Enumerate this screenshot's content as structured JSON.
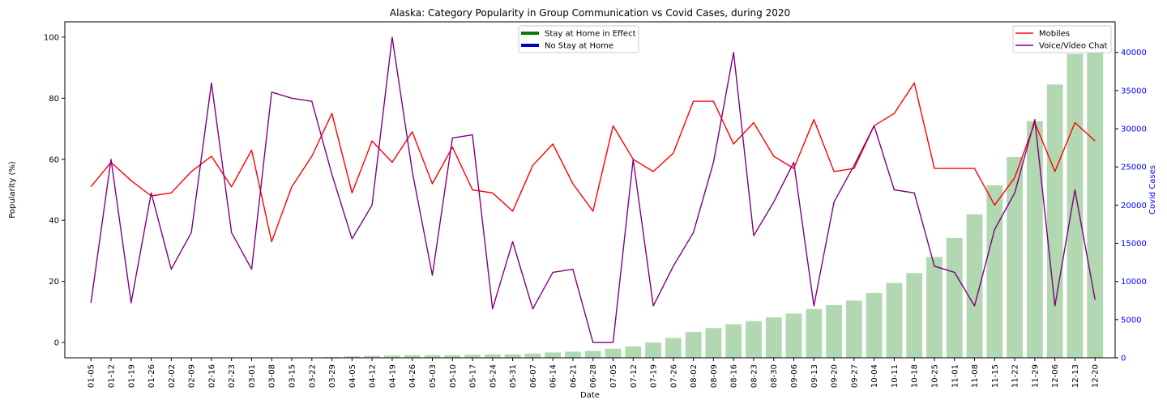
{
  "chart_data": {
    "type": "bar+line",
    "title": "Alaska: Category Popularity in Group Communication vs Covid Cases, during 2020",
    "xlabel": "Date",
    "ylabel": "Popularity (%)",
    "y2label": "Covid Cases",
    "ylim": [
      -5,
      105
    ],
    "y2lim": [
      0,
      44000
    ],
    "yticks": [
      0,
      20,
      40,
      60,
      80,
      100
    ],
    "y2ticks": [
      0,
      5000,
      10000,
      15000,
      20000,
      25000,
      30000,
      35000,
      40000
    ],
    "categories": [
      "01-05",
      "01-12",
      "01-19",
      "01-26",
      "02-02",
      "02-09",
      "02-16",
      "02-23",
      "03-01",
      "03-08",
      "03-15",
      "03-22",
      "03-29",
      "04-05",
      "04-12",
      "04-19",
      "04-26",
      "05-03",
      "05-10",
      "05-17",
      "05-24",
      "05-31",
      "06-07",
      "06-14",
      "06-21",
      "06-28",
      "07-05",
      "07-12",
      "07-19",
      "07-26",
      "08-02",
      "08-09",
      "08-16",
      "08-23",
      "08-30",
      "09-06",
      "09-13",
      "09-20",
      "09-27",
      "10-04",
      "10-11",
      "10-18",
      "10-25",
      "11-01",
      "11-08",
      "11-15",
      "11-22",
      "11-29",
      "12-06",
      "12-13",
      "12-20"
    ],
    "bars": {
      "name": "Covid Cases",
      "color": "#b1d8b1",
      "values": [
        0,
        0,
        0,
        0,
        0,
        0,
        0,
        0,
        0,
        0,
        0,
        0,
        100,
        200,
        250,
        300,
        350,
        350,
        350,
        400,
        450,
        450,
        550,
        700,
        800,
        900,
        1200,
        1500,
        2000,
        2600,
        3400,
        3900,
        4400,
        4800,
        5300,
        5800,
        6400,
        6900,
        7500,
        8500,
        9800,
        11100,
        13200,
        15700,
        18800,
        22600,
        26300,
        31000,
        35800,
        39800,
        42500
      ]
    },
    "series": [
      {
        "name": "Mobiles",
        "color": "#ff0000",
        "values": [
          51,
          59,
          53,
          48,
          49,
          56,
          61,
          51,
          63,
          33,
          51,
          61,
          75,
          49,
          66,
          59,
          69,
          52,
          64,
          50,
          49,
          43,
          58,
          65,
          52,
          43,
          71,
          60,
          56,
          62,
          79,
          79,
          65,
          72,
          61,
          57,
          73,
          56,
          57,
          71,
          75,
          85,
          57,
          57,
          57,
          45,
          54,
          72,
          56,
          72,
          66
        ]
      },
      {
        "name": "Voice/Video Chat",
        "color": "#800080",
        "values": [
          13,
          60,
          13,
          49,
          24,
          36,
          85,
          36,
          24,
          82,
          80,
          79,
          55,
          34,
          45,
          100,
          56,
          22,
          67,
          68,
          11,
          33,
          11,
          23,
          24,
          0,
          0,
          60,
          12,
          25,
          36,
          59,
          95,
          35,
          46,
          59,
          12,
          46,
          58,
          71,
          50,
          49,
          25,
          23,
          12,
          37,
          49,
          73,
          12,
          50,
          14
        ]
      }
    ],
    "legend_left": [
      {
        "label": "Stay at Home in Effect",
        "color": "#008000"
      },
      {
        "label": "No Stay at Home",
        "color": "#0000cd"
      }
    ],
    "legend_right_placement": "top-right",
    "legend_left_placement": "top-center",
    "colors": {
      "right_axis": "#0000ff",
      "axis": "#000000"
    }
  }
}
